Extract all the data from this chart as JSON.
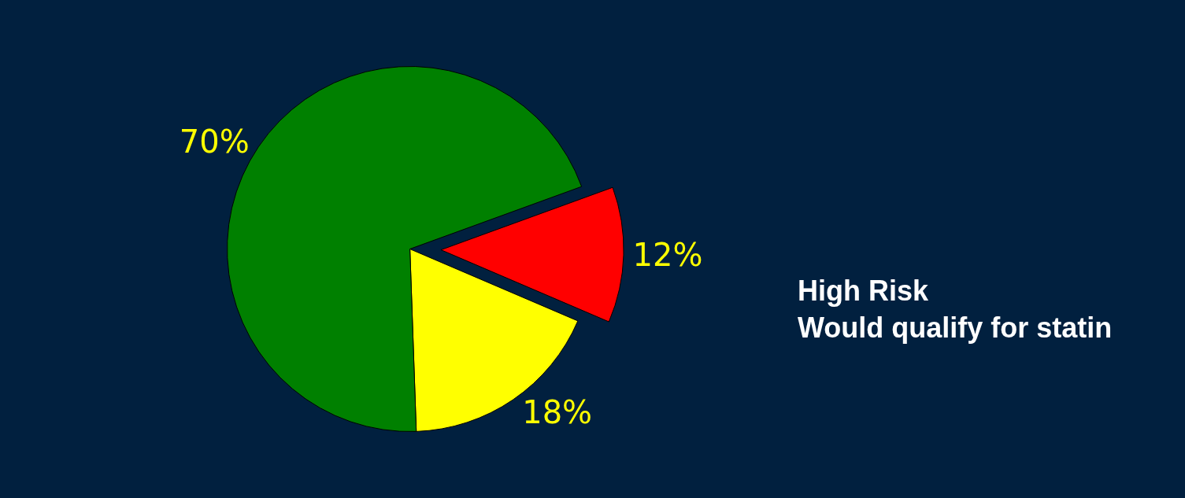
{
  "chart_data": {
    "type": "pie",
    "categories": [
      null,
      null,
      null
    ],
    "values": [
      12,
      18,
      70
    ],
    "colors": [
      "#ff0000",
      "#ffff00",
      "#008000"
    ],
    "value_labels": [
      "12%",
      "18%",
      "70%"
    ],
    "annotations": [
      "High Risk\nWould qualify for statin"
    ]
  }
}
